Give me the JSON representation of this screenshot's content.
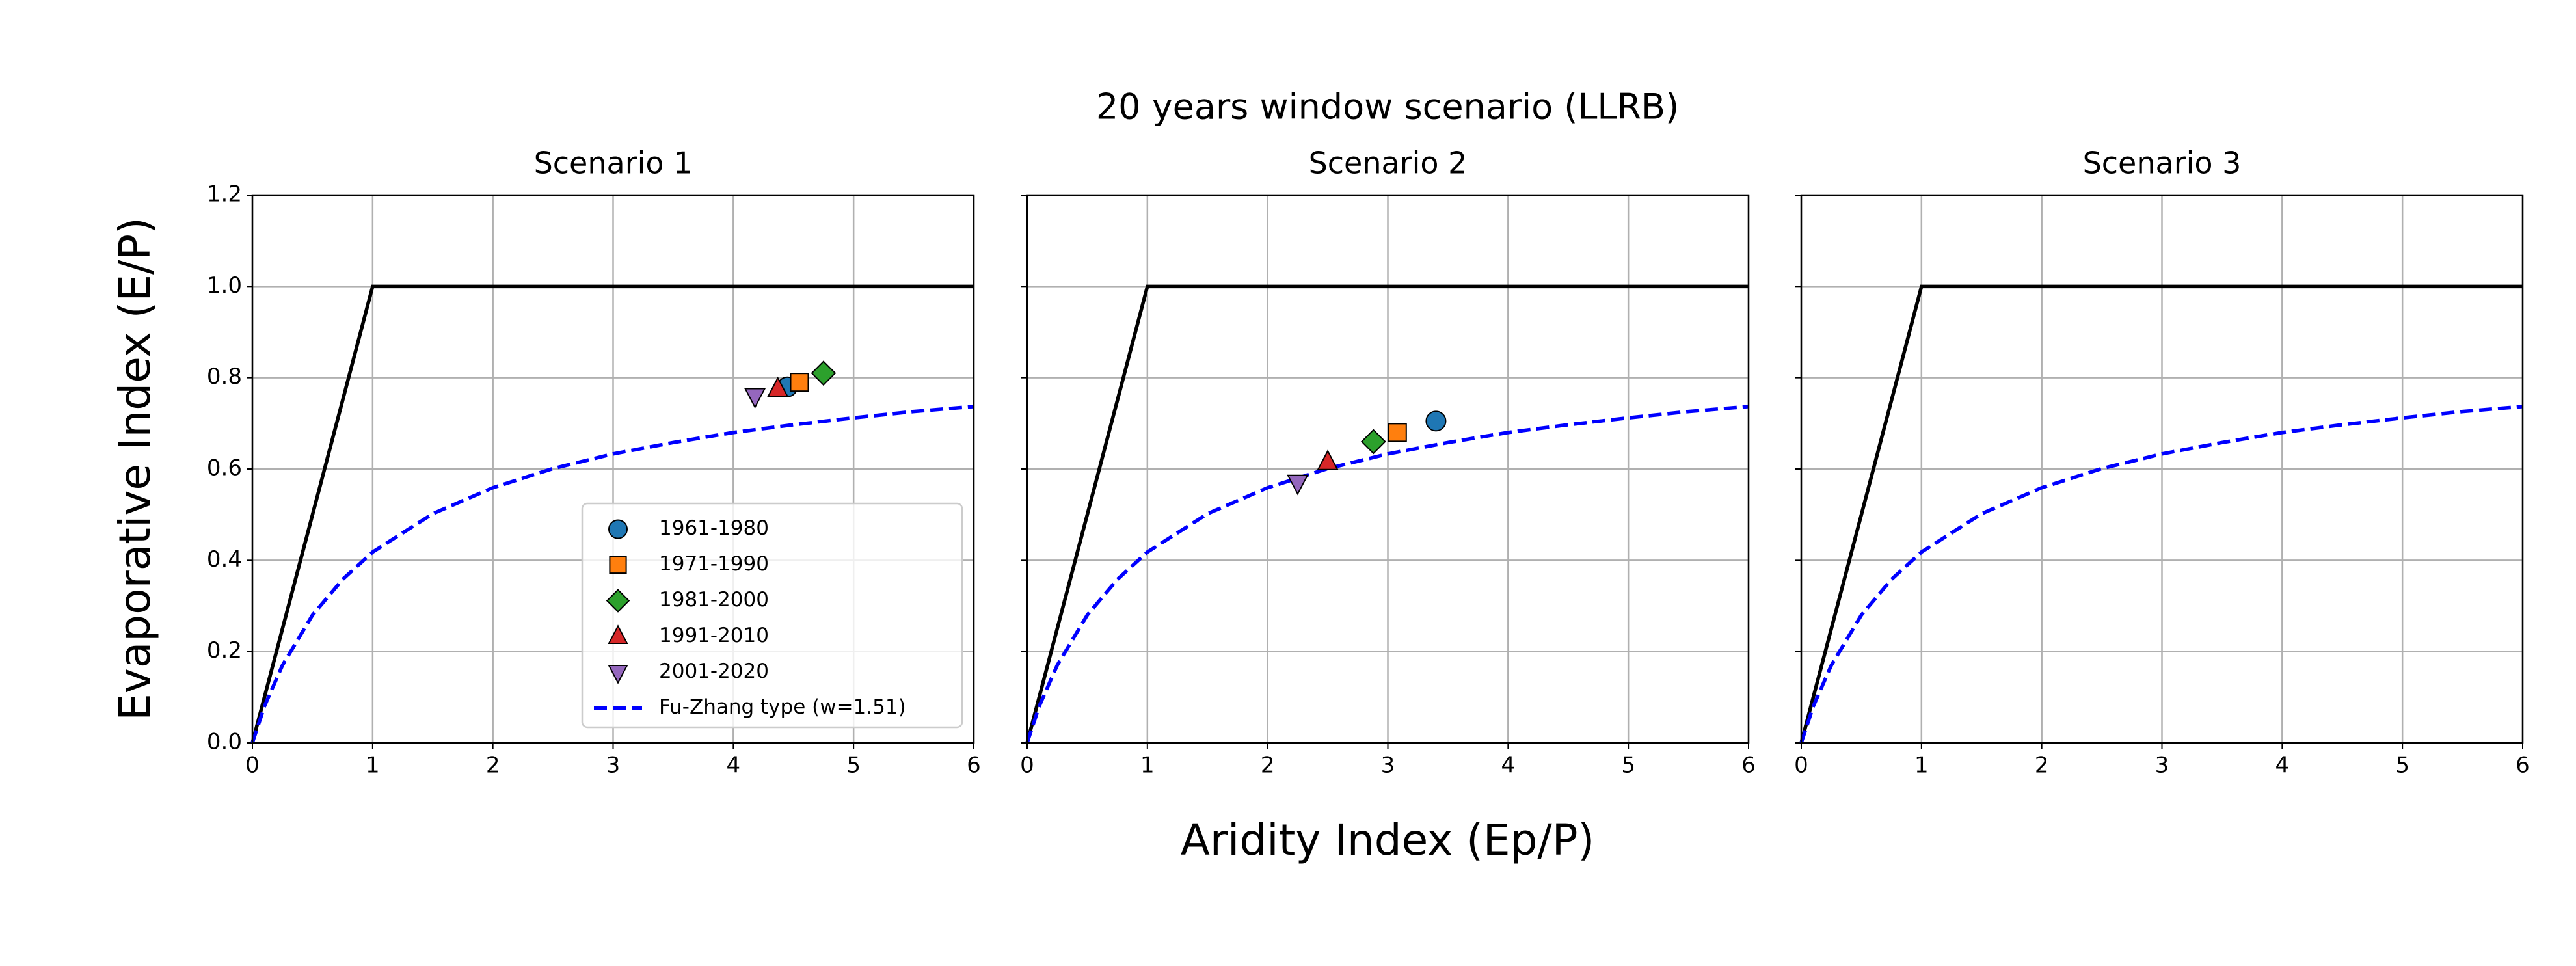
{
  "figure": {
    "title": "20 years window scenario (LLRB)",
    "xlabel": "Aridity Index (Ep/P)",
    "ylabel": "Evaporative Index (E/P)"
  },
  "chart_data": [
    {
      "type": "scatter",
      "title": "Scenario 1",
      "xlim": [
        0,
        6
      ],
      "ylim": [
        0,
        1.2
      ],
      "xticks": [
        0,
        1,
        2,
        3,
        4,
        5,
        6
      ],
      "yticks": [
        {
          "value": 0,
          "label": "0.0"
        },
        0.2,
        0.4,
        0.6,
        0.8,
        {
          "value": 1,
          "label": "1.0"
        },
        1.2
      ],
      "show_ytick_labels": true,
      "grid": true,
      "legend": "lower right",
      "limits": {
        "x": [
          0,
          1,
          6
        ],
        "values": [
          0,
          1,
          1
        ],
        "color": "#000000"
      },
      "curve": {
        "name": "Fu-Zhang type (w=1.51)",
        "color": "#0000ff",
        "dash": true,
        "x": [
          0,
          0.1,
          0.25,
          0.5,
          0.75,
          1,
          1.5,
          2,
          2.5,
          3,
          3.5,
          4,
          4.5,
          5,
          5.5,
          6
        ],
        "values": [
          0,
          0.08,
          0.17,
          0.28,
          0.358,
          0.418,
          0.502,
          0.559,
          0.601,
          0.633,
          0.658,
          0.68,
          0.697,
          0.712,
          0.726,
          0.737
        ]
      },
      "series": [
        {
          "name": "1961-1980",
          "color": "#1f77b4",
          "marker": "o",
          "x": [
            4.45
          ],
          "values": [
            0.78
          ]
        },
        {
          "name": "1971-1990",
          "color": "#ff7f0e",
          "marker": "s",
          "x": [
            4.55
          ],
          "values": [
            0.79
          ]
        },
        {
          "name": "1981-2000",
          "color": "#2ca02c",
          "marker": "D",
          "x": [
            4.75
          ],
          "values": [
            0.81
          ]
        },
        {
          "name": "1991-2010",
          "color": "#d62728",
          "marker": "^",
          "x": [
            4.37
          ],
          "values": [
            0.775
          ]
        },
        {
          "name": "2001-2020",
          "color": "#9467bd",
          "marker": "v",
          "x": [
            4.18
          ],
          "values": [
            0.76
          ]
        }
      ]
    },
    {
      "type": "scatter",
      "title": "Scenario 2",
      "xlim": [
        0,
        6
      ],
      "ylim": [
        0,
        1.2
      ],
      "xticks": [
        0,
        1,
        2,
        3,
        4,
        5,
        6
      ],
      "yticks": [
        0,
        0.2,
        0.4,
        0.6,
        0.8,
        1,
        1.2
      ],
      "show_ytick_labels": false,
      "grid": true,
      "legend": false,
      "limits": {
        "x": [
          0,
          1,
          6
        ],
        "values": [
          0,
          1,
          1
        ],
        "color": "#000000"
      },
      "curve": {
        "color": "#0000ff",
        "dash": true,
        "x": [
          0,
          0.1,
          0.25,
          0.5,
          0.75,
          1,
          1.5,
          2,
          2.5,
          3,
          3.5,
          4,
          4.5,
          5,
          5.5,
          6
        ],
        "values": [
          0,
          0.08,
          0.17,
          0.28,
          0.358,
          0.418,
          0.502,
          0.559,
          0.601,
          0.633,
          0.658,
          0.68,
          0.697,
          0.712,
          0.726,
          0.737
        ]
      },
      "series": [
        {
          "color": "#1f77b4",
          "marker": "o",
          "x": [
            3.4
          ],
          "values": [
            0.705
          ]
        },
        {
          "color": "#ff7f0e",
          "marker": "s",
          "x": [
            3.08
          ],
          "values": [
            0.68
          ]
        },
        {
          "color": "#2ca02c",
          "marker": "D",
          "x": [
            2.88
          ],
          "values": [
            0.66
          ]
        },
        {
          "color": "#d62728",
          "marker": "^",
          "x": [
            2.5
          ],
          "values": [
            0.615
          ]
        },
        {
          "color": "#9467bd",
          "marker": "v",
          "x": [
            2.25
          ],
          "values": [
            0.57
          ]
        }
      ]
    },
    {
      "type": "scatter",
      "title": "Scenario 3",
      "xlim": [
        0,
        6
      ],
      "ylim": [
        0,
        1.2
      ],
      "xticks": [
        0,
        1,
        2,
        3,
        4,
        5,
        6
      ],
      "yticks": [
        0,
        0.2,
        0.4,
        0.6,
        0.8,
        1,
        1.2
      ],
      "show_ytick_labels": false,
      "grid": true,
      "legend": false,
      "limits": {
        "x": [
          0,
          1,
          6
        ],
        "values": [
          0,
          1,
          1
        ],
        "color": "#000000"
      },
      "curve": {
        "color": "#0000ff",
        "dash": true,
        "x": [
          0,
          0.1,
          0.25,
          0.5,
          0.75,
          1,
          1.5,
          2,
          2.5,
          3,
          3.5,
          4,
          4.5,
          5,
          5.5,
          6
        ],
        "values": [
          0,
          0.08,
          0.17,
          0.28,
          0.358,
          0.418,
          0.502,
          0.559,
          0.601,
          0.633,
          0.658,
          0.68,
          0.697,
          0.712,
          0.726,
          0.737
        ]
      },
      "series": []
    }
  ]
}
